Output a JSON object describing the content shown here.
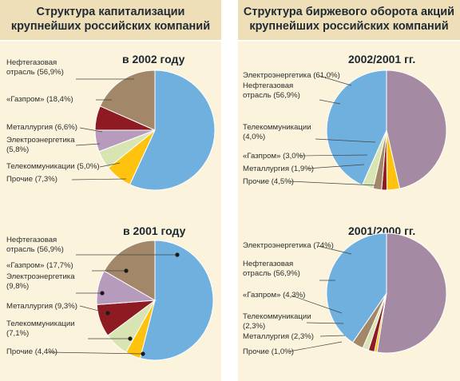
{
  "left_panel": {
    "title_line1": "Структура капитализации",
    "title_line2": "крупнейших российских компаний"
  },
  "right_panel": {
    "title_line1": "Структура биржевого оборота акций",
    "title_line2": "крупнейших российских компаний"
  },
  "colors": {
    "header_bg": "#eedfb8",
    "panel_bg": "#fbf3dc",
    "blue": "#6fb0df",
    "brown": "#a28868",
    "darkred": "#8e1a22",
    "lilac": "#b69bbd",
    "lightgreen": "#d9e4b3",
    "yellow": "#ffc20e",
    "purple": "#a58aa3"
  },
  "chart_data": [
    {
      "type": "pie",
      "title": "в 2002 году",
      "labels": [
        "Нефтегазовая отрасль (56,9%)",
        "«Газпром» (18,4%)",
        "Металлургия (6,6%)",
        "Электроэнергетика (5,8%)",
        "Телекоммуникации (5,0%)",
        "Прочие (7,3%)"
      ],
      "slices": [
        {
          "name": "Нефтегазовая отрасль",
          "value": 56.9,
          "color": "#6fb0df"
        },
        {
          "name": "Прочие",
          "value": 7.3,
          "color": "#ffc20e"
        },
        {
          "name": "Телекоммуникации",
          "value": 5.0,
          "color": "#d9e4b3"
        },
        {
          "name": "Электроэнергетика",
          "value": 5.8,
          "color": "#b69bbd"
        },
        {
          "name": "Металлургия",
          "value": 6.6,
          "color": "#8e1a22"
        },
        {
          "name": "«Газпром»",
          "value": 18.4,
          "color": "#a28868"
        }
      ]
    },
    {
      "type": "pie",
      "title": "в 2001 году",
      "labels": [
        "Нефтегазовая отрасль (56,9%)",
        "«Газпром» (17,7%)",
        "Электроэнергетика (9,8%)",
        "Металлургия (9,3%)",
        "Телекоммуникации (7,1%)",
        "Прочие (4,4%)"
      ],
      "slices": [
        {
          "name": "Нефтегазовая отрасль",
          "value": 56.9,
          "color": "#6fb0df"
        },
        {
          "name": "Прочие",
          "value": 4.4,
          "color": "#ffc20e"
        },
        {
          "name": "Телекоммуникации",
          "value": 7.1,
          "color": "#d9e4b3"
        },
        {
          "name": "Металлургия",
          "value": 9.3,
          "color": "#8e1a22"
        },
        {
          "name": "Электроэнергетика",
          "value": 9.8,
          "color": "#b69bbd"
        },
        {
          "name": "«Газпром»",
          "value": 17.7,
          "color": "#a28868"
        }
      ]
    },
    {
      "type": "pie",
      "title": "2002/2001 гг.",
      "labels": [
        "Электроэнергетика (61,0%)",
        "Нефтегазовая отрасль (56,9%)",
        "Телекоммуникации (4,0%)",
        "«Газпром» (3,0%)",
        "Металлургия (1,9%)",
        "Прочие (4,5%)"
      ],
      "slices": [
        {
          "name": "Электроэнергетика",
          "value": 61.0,
          "color": "#a58aa3"
        },
        {
          "name": "Прочие",
          "value": 4.5,
          "color": "#ffc20e"
        },
        {
          "name": "Металлургия",
          "value": 1.9,
          "color": "#8e1a22"
        },
        {
          "name": "«Газпром»",
          "value": 3.0,
          "color": "#a28868"
        },
        {
          "name": "Телекоммуникации",
          "value": 4.0,
          "color": "#d9e4b3"
        },
        {
          "name": "Нефтегазовая отрасль",
          "value": 56.9,
          "color": "#6fb0df"
        }
      ]
    },
    {
      "type": "pie",
      "title": "2001/2000 гг.",
      "labels": [
        "Электроэнергетика (74%)",
        "Нефтегазовая отрасль (56,9%)",
        "«Газпром» (4,3%)",
        "Телекоммуникации (2,3%)",
        "Металлургия (2,3%)",
        "Прочие (1,0%)"
      ],
      "slices": [
        {
          "name": "Электроэнергетика",
          "value": 74,
          "color": "#a58aa3"
        },
        {
          "name": "Прочие",
          "value": 1.0,
          "color": "#ffc20e"
        },
        {
          "name": "Металлургия",
          "value": 2.3,
          "color": "#8e1a22"
        },
        {
          "name": "Телекоммуникации",
          "value": 2.3,
          "color": "#d9e4b3"
        },
        {
          "name": "«Газпром»",
          "value": 4.3,
          "color": "#a28868"
        },
        {
          "name": "Нефтегазовая отрасль",
          "value": 56.9,
          "color": "#6fb0df"
        }
      ]
    }
  ]
}
